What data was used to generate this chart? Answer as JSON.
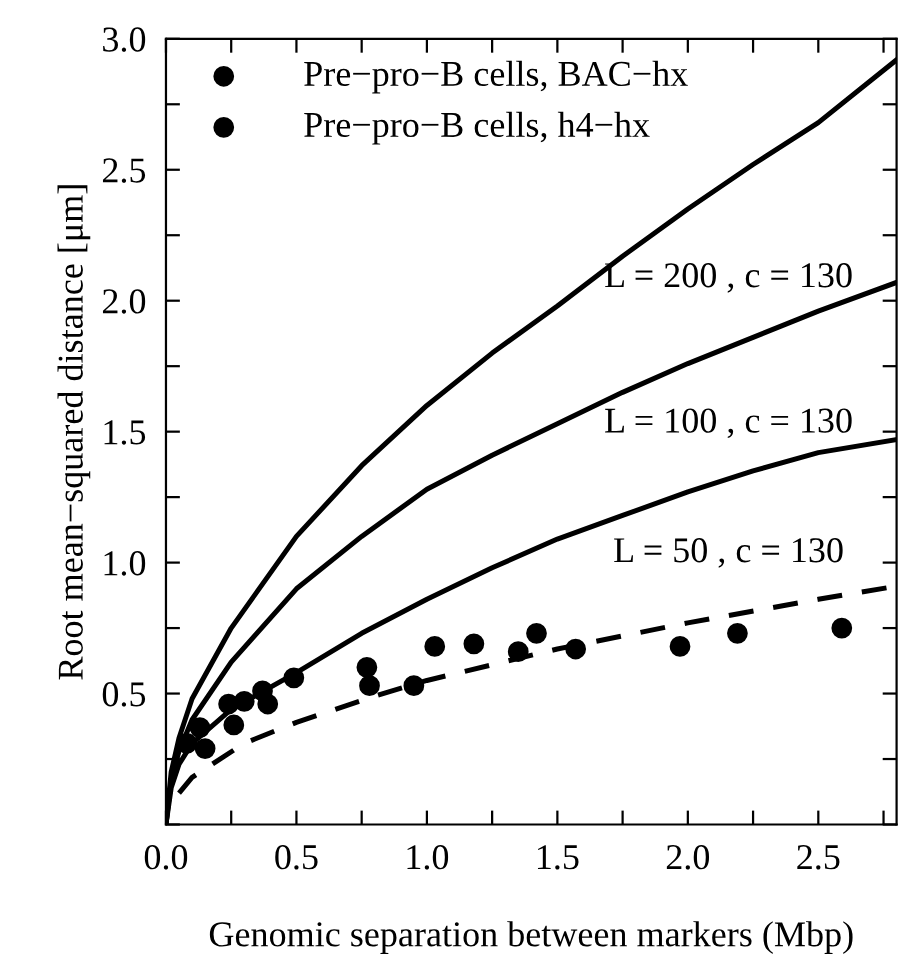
{
  "chart_data": {
    "type": "scatter",
    "xlabel": "Genomic separation between markers (Mbp)",
    "ylabel": "Root mean−squared distance [μm]",
    "xlim": [
      0,
      2.8
    ],
    "ylim": [
      0,
      3.0
    ],
    "xticks": [
      {
        "value": 0,
        "label": "0.0"
      },
      {
        "value": 0.25,
        "label": null
      },
      0.5,
      {
        "value": 0.75,
        "label": null
      },
      {
        "value": 1,
        "label": "1.0"
      },
      {
        "value": 1.25,
        "label": null
      },
      1.5,
      {
        "value": 1.75,
        "label": null
      },
      {
        "value": 2,
        "label": "2.0"
      },
      {
        "value": 2.25,
        "label": null
      },
      2.5,
      {
        "value": 2.75,
        "label": null
      }
    ],
    "yticks": [
      {
        "value": 0,
        "label": null
      },
      {
        "value": 0.25,
        "label": null
      },
      0.5,
      {
        "value": 0.75,
        "label": null
      },
      {
        "value": 1,
        "label": "1.0"
      },
      {
        "value": 1.25,
        "label": null
      },
      1.5,
      {
        "value": 1.75,
        "label": null
      },
      {
        "value": 2,
        "label": "2.0"
      },
      {
        "value": 2.25,
        "label": null
      },
      2.5,
      {
        "value": 2.75,
        "label": null
      },
      {
        "value": 3,
        "label": "3.0"
      }
    ],
    "legend": "top left",
    "marker": "circle",
    "grid": false,
    "series": [
      {
        "name": "Pre−pro−B cells, BAC−hx",
        "color": "#000000",
        "x": [
          0.08,
          0.15,
          0.26,
          0.37,
          0.49,
          0.78,
          1.03,
          1.35,
          1.57,
          2.19
        ],
        "values": [
          0.31,
          0.29,
          0.38,
          0.51,
          0.56,
          0.53,
          0.68,
          0.66,
          0.67,
          0.73
        ]
      },
      {
        "name": "Pre−pro−B cells, h4−hx",
        "color": "#000000",
        "x": [
          0.13,
          0.24,
          0.3,
          0.39,
          0.77,
          0.95,
          1.18,
          1.42,
          1.97,
          2.59
        ],
        "values": [
          0.37,
          0.46,
          0.47,
          0.46,
          0.6,
          0.53,
          0.69,
          0.73,
          0.68,
          0.75
        ]
      },
      {
        "type": "line",
        "color": "#000000",
        "line_style": "solid",
        "marker": "none",
        "x": [
          0,
          0.02,
          0.05,
          0.1,
          0.25,
          0.5,
          0.75,
          1.0,
          1.25,
          1.5,
          1.75,
          2.0,
          2.25,
          2.5,
          2.8
        ],
        "values": [
          0,
          0.2,
          0.33,
          0.48,
          0.75,
          1.1,
          1.37,
          1.6,
          1.8,
          1.98,
          2.17,
          2.35,
          2.52,
          2.68,
          2.92
        ]
      },
      {
        "type": "line",
        "color": "#000000",
        "line_style": "solid",
        "marker": "none",
        "x": [
          0,
          0.02,
          0.05,
          0.1,
          0.25,
          0.5,
          0.75,
          1.0,
          1.25,
          1.5,
          1.75,
          2.0,
          2.25,
          2.5,
          2.8
        ],
        "values": [
          0,
          0.17,
          0.28,
          0.4,
          0.62,
          0.9,
          1.1,
          1.28,
          1.41,
          1.53,
          1.65,
          1.76,
          1.86,
          1.96,
          2.07
        ]
      },
      {
        "type": "line",
        "color": "#000000",
        "line_style": "solid",
        "marker": "none",
        "x": [
          0,
          0.02,
          0.05,
          0.1,
          0.25,
          0.5,
          0.75,
          1.0,
          1.25,
          1.5,
          1.75,
          2.0,
          2.25,
          2.5,
          2.8
        ],
        "values": [
          0,
          0.14,
          0.23,
          0.31,
          0.44,
          0.58,
          0.73,
          0.86,
          0.98,
          1.09,
          1.18,
          1.27,
          1.35,
          1.42,
          1.47
        ]
      },
      {
        "type": "line",
        "color": "#000000",
        "line_style": "dashed",
        "marker": "none",
        "x": [
          0.05,
          0.1,
          0.3,
          0.5,
          0.8,
          1.0,
          1.5,
          2.0,
          2.5,
          2.8
        ],
        "values": [
          0.12,
          0.18,
          0.31,
          0.39,
          0.49,
          0.55,
          0.67,
          0.77,
          0.86,
          0.91
        ]
      }
    ],
    "annotations": [
      "L = 200 , c = 130",
      "L = 100 , c = 130",
      "L = 50 , c = 130"
    ]
  }
}
